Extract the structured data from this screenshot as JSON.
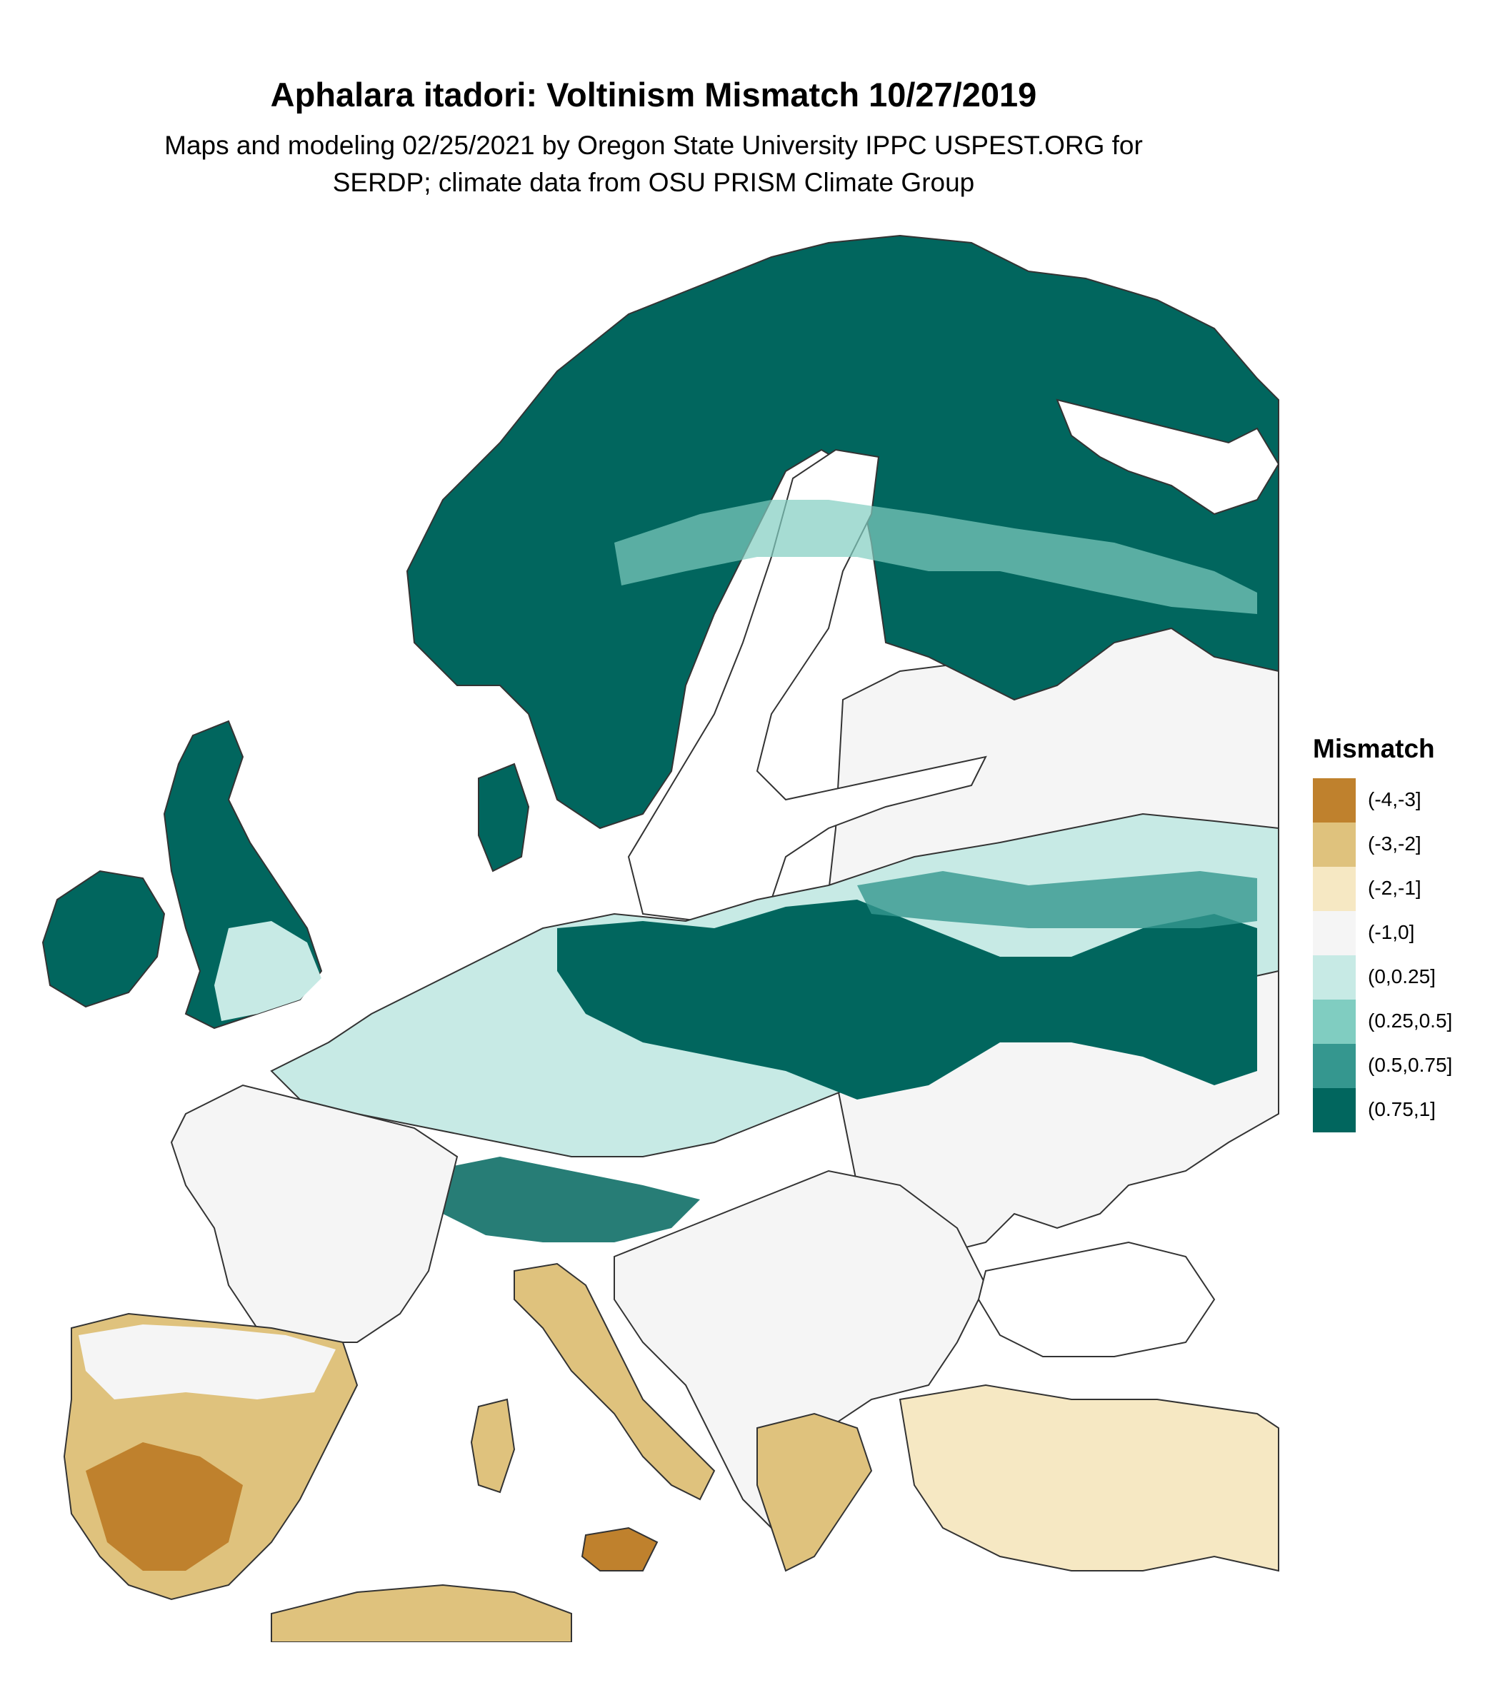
{
  "title": "Aphalara itadori: Voltinism Mismatch 10/27/2019",
  "subtitle_line1": "Maps and modeling 02/25/2021 by Oregon State University IPPC USPEST.ORG for",
  "subtitle_line2": "SERDP; climate data from OSU PRISM Climate Group",
  "legend": {
    "title": "Mismatch",
    "items": [
      {
        "label": "(-4,-3]",
        "color": "#bf812d"
      },
      {
        "label": "(-3,-2]",
        "color": "#dfc27d"
      },
      {
        "label": "(-2,-1]",
        "color": "#f6e8c3"
      },
      {
        "label": "(-1,0]",
        "color": "#f5f5f5"
      },
      {
        "label": "(0,0.25]",
        "color": "#c7eae5"
      },
      {
        "label": "(0.25,0.5]",
        "color": "#80cdc1"
      },
      {
        "label": "(0.5,0.75]",
        "color": "#35978f"
      },
      {
        "label": "(0.75,1]",
        "color": "#01665e"
      }
    ]
  },
  "colors": {
    "border": "#333333",
    "water": "#ffffff"
  }
}
